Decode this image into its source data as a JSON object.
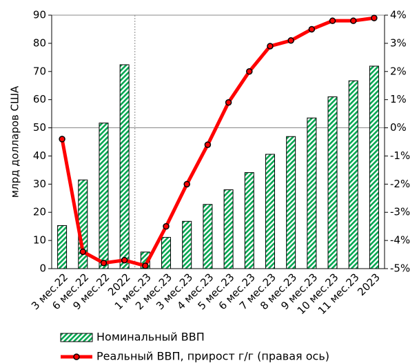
{
  "chart_data": {
    "type": "bar_line",
    "y_label": "млрд долларов США",
    "categories": [
      "3 мес.22",
      "6 мес.22",
      "9 мес.22",
      "2022",
      "1 мес.23",
      "2 мес.23",
      "3 мес.23",
      "4 мес.23",
      "5 мес.23",
      "6 мес.23",
      "7 мес.23",
      "8 мес.23",
      "9 мес.23",
      "10 мес.23",
      "11 мес.23",
      "2023"
    ],
    "series": [
      {
        "name": "Номинальный ВВП",
        "color": "#00a650",
        "type": "bar",
        "values": [
          15.3,
          31.5,
          51.7,
          72.4,
          5.9,
          11.1,
          16.8,
          22.8,
          28.0,
          34.1,
          40.6,
          46.9,
          53.5,
          61.0,
          66.7,
          71.9
        ]
      },
      {
        "name": "Реальный ВВП, прирост г/г (правая ось)",
        "color": "#ff0000",
        "type": "line",
        "axis": "y2",
        "values": [
          -0.4,
          -4.4,
          -4.8,
          -4.7,
          -4.9,
          -3.5,
          -2.0,
          -0.6,
          0.9,
          2.0,
          2.9,
          3.1,
          3.5,
          3.8,
          3.8,
          3.9
        ]
      }
    ],
    "ylim": [
      0,
      90
    ],
    "yticks": [
      0,
      10,
      20,
      30,
      40,
      50,
      60,
      70,
      80,
      90
    ],
    "y2lim": [
      -5,
      4
    ],
    "y2ticks": [
      {
        "value": -5,
        "label": "-5%"
      },
      {
        "value": -4,
        "label": "-4%"
      },
      {
        "value": -3,
        "label": "-3%"
      },
      {
        "value": -2,
        "label": "-2%"
      },
      {
        "value": -1,
        "label": "-1%"
      },
      {
        "value": 0,
        "label": "0%"
      },
      {
        "value": 1,
        "label": "1%"
      },
      {
        "value": 2,
        "label": "2%"
      },
      {
        "value": 3,
        "label": "3%"
      },
      {
        "value": 4,
        "label": "4%"
      }
    ]
  }
}
